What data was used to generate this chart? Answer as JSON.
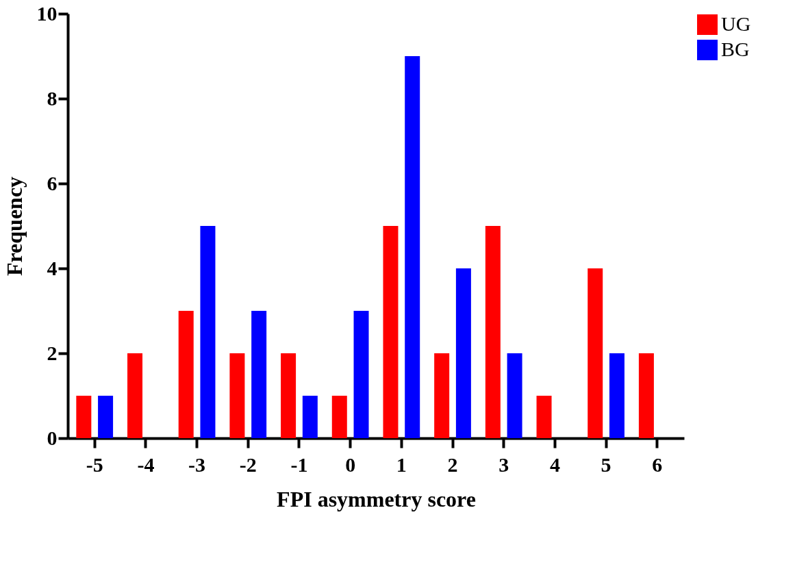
{
  "chart_data": {
    "type": "bar",
    "xlabel": "FPI asymmetry score",
    "ylabel": "Frequency",
    "categories": [
      "-5",
      "-4",
      "-3",
      "-2",
      "-1",
      "0",
      "1",
      "2",
      "3",
      "4",
      "5",
      "6"
    ],
    "series": [
      {
        "name": "UG",
        "color": "#ff0000",
        "values": [
          1,
          2,
          3,
          2,
          2,
          1,
          5,
          2,
          5,
          1,
          4,
          2
        ]
      },
      {
        "name": "BG",
        "color": "#0000ff",
        "values": [
          1,
          0,
          5,
          3,
          1,
          3,
          9,
          4,
          2,
          0,
          2,
          0
        ]
      }
    ],
    "ylim": [
      0,
      10
    ],
    "yticks": [
      0,
      2,
      4,
      6,
      8,
      10
    ],
    "grid": false,
    "legend": "top right"
  }
}
